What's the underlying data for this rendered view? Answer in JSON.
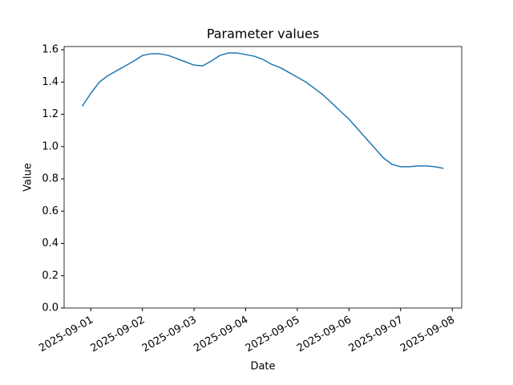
{
  "chart_data": {
    "type": "line",
    "title": "Parameter values",
    "x_label": "Date",
    "y_label": "Value",
    "x": [
      "2025-08-31T20:00",
      "2025-09-01T00:00",
      "2025-09-01T04:00",
      "2025-09-01T08:00",
      "2025-09-01T12:00",
      "2025-09-01T16:00",
      "2025-09-01T20:00",
      "2025-09-02T00:00",
      "2025-09-02T04:00",
      "2025-09-02T08:00",
      "2025-09-02T12:00",
      "2025-09-02T16:00",
      "2025-09-02T20:00",
      "2025-09-03T00:00",
      "2025-09-03T04:00",
      "2025-09-03T08:00",
      "2025-09-03T12:00",
      "2025-09-03T16:00",
      "2025-09-03T20:00",
      "2025-09-04T00:00",
      "2025-09-04T04:00",
      "2025-09-04T08:00",
      "2025-09-04T12:00",
      "2025-09-04T16:00",
      "2025-09-04T20:00",
      "2025-09-05T00:00",
      "2025-09-05T04:00",
      "2025-09-05T08:00",
      "2025-09-05T12:00",
      "2025-09-05T16:00",
      "2025-09-05T20:00",
      "2025-09-06T00:00",
      "2025-09-06T04:00",
      "2025-09-06T08:00",
      "2025-09-06T12:00",
      "2025-09-06T16:00",
      "2025-09-06T20:00",
      "2025-09-07T00:00",
      "2025-09-07T04:00",
      "2025-09-07T08:00",
      "2025-09-07T12:00",
      "2025-09-07T16:00",
      "2025-09-07T20:00"
    ],
    "series": [
      {
        "color": "#1f77b4",
        "values": [
          1.25,
          1.33,
          1.4,
          1.44,
          1.47,
          1.5,
          1.53,
          1.565,
          1.575,
          1.575,
          1.565,
          1.545,
          1.525,
          1.505,
          1.5,
          1.53,
          1.565,
          1.58,
          1.58,
          1.57,
          1.56,
          1.54,
          1.51,
          1.49,
          1.46,
          1.43,
          1.4,
          1.36,
          1.32,
          1.27,
          1.22,
          1.17,
          1.11,
          1.05,
          0.99,
          0.93,
          0.89,
          0.875,
          0.875,
          0.88,
          0.88,
          0.875,
          0.865
        ]
      }
    ],
    "xlim": [
      "2025-08-31T11:36",
      "2025-09-08T04:24"
    ],
    "xticks": [
      "2025-09-01",
      "2025-09-02",
      "2025-09-03",
      "2025-09-04",
      "2025-09-05",
      "2025-09-06",
      "2025-09-07",
      "2025-09-08"
    ],
    "ylim": [
      0,
      1.62
    ],
    "yticks": [
      {
        "value": 0,
        "label": "0.0"
      },
      0.2,
      0.4,
      0.6,
      0.8,
      {
        "value": 1,
        "label": "1.0"
      },
      1.2,
      1.4,
      1.6
    ]
  }
}
